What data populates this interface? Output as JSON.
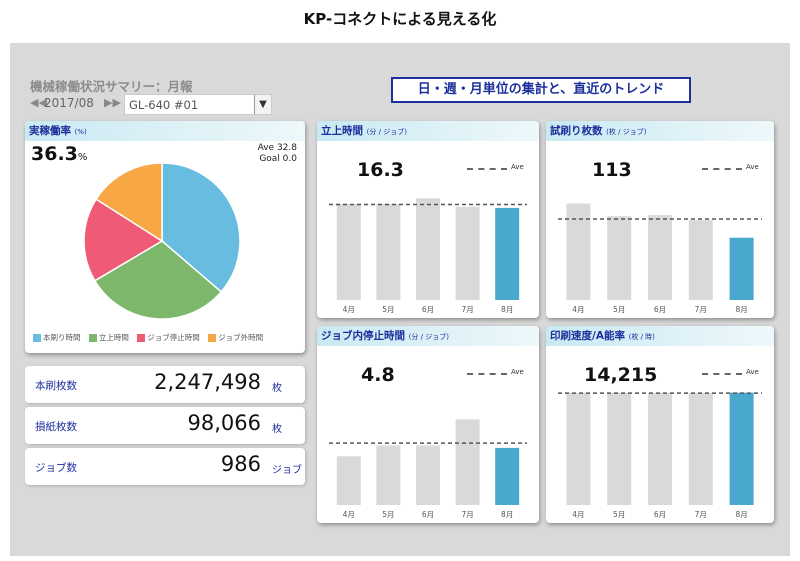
{
  "page_title": "KP-コネクトによる見える化",
  "report_title": "機械稼働状況サマリー：月報",
  "month": "2017/08",
  "machine_select": "GL-640 #01",
  "banner": "日・週・月単位の集計と、直近のトレンド",
  "operating_rate": {
    "title": "実稼働率",
    "unit": "(%)",
    "value": "36.3",
    "value_unit": "%",
    "ave": "Ave 32.8",
    "goal": "Goal 0.0"
  },
  "stats": [
    {
      "label": "本刷枚数",
      "value": "2,247,498",
      "unit": "枚"
    },
    {
      "label": "損紙枚数",
      "value": "98,066",
      "unit": "枚"
    },
    {
      "label": "ジョブ数",
      "value": "986",
      "unit": "ジョブ"
    }
  ],
  "colors": {
    "print": "#67bce0",
    "setup": "#7cb76b",
    "stop": "#ef5a77",
    "other": "#f7a744",
    "bar": "#d9d9d9",
    "bar_current": "#4aa8ce"
  },
  "chart_data": [
    {
      "type": "pie",
      "title": "実稼働率",
      "categories": [
        "本刷り時間",
        "立上時間",
        "ジョブ停止時間",
        "ジョブ外時間"
      ],
      "values": [
        36.3,
        30.2,
        17.5,
        16.0
      ]
    },
    {
      "type": "bar",
      "title": "立上時間",
      "unit": "(分 / ジョブ)",
      "value_label": "16.3",
      "ave_label": "Ave",
      "categories": [
        "4月",
        "5月",
        "6月",
        "7月",
        "8月"
      ],
      "values": [
        17.0,
        17.0,
        18.0,
        16.5,
        16.3
      ],
      "ave": 16.9,
      "ylim": [
        0,
        20
      ]
    },
    {
      "type": "bar",
      "title": "試刷り枚数",
      "unit": "(枚 / ジョブ)",
      "value_label": "113",
      "ave_label": "Ave",
      "categories": [
        "4月",
        "5月",
        "6月",
        "7月",
        "8月"
      ],
      "values": [
        175,
        152,
        154,
        145,
        113
      ],
      "ave": 147,
      "ylim": [
        0,
        205
      ]
    },
    {
      "type": "bar",
      "title": "ジョブ内停止時間",
      "unit": "(分 / ジョブ)",
      "value_label": "4.8",
      "ave_label": "Ave",
      "categories": [
        "4月",
        "5月",
        "6月",
        "7月",
        "8月"
      ],
      "values": [
        4.1,
        5.0,
        5.0,
        7.2,
        4.8
      ],
      "ave": 5.2,
      "ylim": [
        0,
        9.5
      ]
    },
    {
      "type": "bar",
      "title": "印刷速度/A能率",
      "unit": "(枚 / 時)",
      "value_label": "14,215",
      "ave_label": "Ave",
      "categories": [
        "4月",
        "5月",
        "6月",
        "7月",
        "8月"
      ],
      "values": [
        14200,
        14200,
        14200,
        14200,
        14215
      ],
      "ave": 14150,
      "ylim": [
        0,
        14300
      ]
    }
  ]
}
